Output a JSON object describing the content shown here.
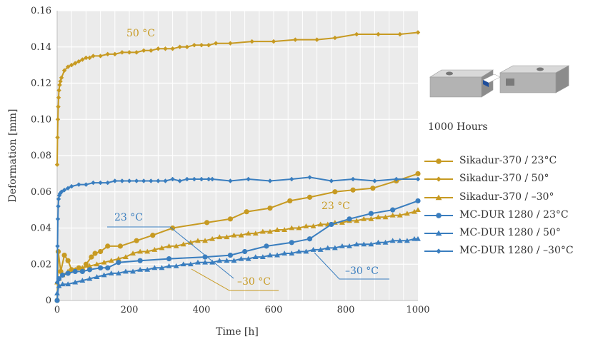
{
  "chart_data": {
    "type": "line",
    "xlabel": "Time [h]",
    "ylabel": "Deformation [mm]",
    "xlim": [
      0,
      1000
    ],
    "ylim": [
      0,
      0.16
    ],
    "xticks": [
      0,
      200,
      400,
      600,
      800,
      1000
    ],
    "yticks": [
      0,
      0.02,
      0.04,
      0.06,
      0.08,
      0.1,
      0.12,
      0.14,
      0.16
    ],
    "xtick_labels": [
      "0",
      "200",
      "400",
      "600",
      "800",
      "1000"
    ],
    "ytick_labels": [
      "0",
      "0.02",
      "0.04",
      "0.06",
      "0.08",
      "0.10",
      "0.12",
      "0.14",
      "0.16"
    ],
    "grid": true,
    "legend_position": "right",
    "series": [
      {
        "name": "Sikadur-370 / 23°C",
        "color": "#c79a22",
        "marker": "circle",
        "x": [
          0,
          3,
          10,
          20,
          30,
          40,
          60,
          70,
          80,
          95,
          105,
          120,
          140,
          175,
          220,
          265,
          320,
          415,
          480,
          525,
          590,
          645,
          700,
          770,
          820,
          875,
          940,
          1000
        ],
        "y": [
          0.0,
          0.027,
          0.016,
          0.025,
          0.022,
          0.017,
          0.018,
          0.017,
          0.02,
          0.024,
          0.026,
          0.027,
          0.03,
          0.03,
          0.033,
          0.036,
          0.04,
          0.043,
          0.045,
          0.049,
          0.051,
          0.055,
          0.057,
          0.06,
          0.061,
          0.062,
          0.066,
          0.07
        ]
      },
      {
        "name": "Sikadur-370 / 50°",
        "color": "#c79a22",
        "marker": "diamond",
        "x": [
          0,
          1,
          2,
          3,
          4,
          5,
          7,
          9,
          12,
          20,
          30,
          40,
          50,
          60,
          70,
          80,
          90,
          100,
          120,
          140,
          160,
          180,
          200,
          220,
          240,
          260,
          280,
          300,
          320,
          340,
          360,
          380,
          400,
          420,
          440,
          480,
          540,
          600,
          660,
          720,
          770,
          830,
          890,
          950,
          1000
        ],
        "y": [
          0.075,
          0.09,
          0.1,
          0.107,
          0.112,
          0.116,
          0.119,
          0.121,
          0.123,
          0.127,
          0.129,
          0.13,
          0.131,
          0.132,
          0.133,
          0.134,
          0.134,
          0.135,
          0.135,
          0.136,
          0.136,
          0.137,
          0.137,
          0.137,
          0.138,
          0.138,
          0.139,
          0.139,
          0.139,
          0.14,
          0.14,
          0.141,
          0.141,
          0.141,
          0.142,
          0.142,
          0.143,
          0.143,
          0.144,
          0.144,
          0.145,
          0.147,
          0.147,
          0.147,
          0.148
        ]
      },
      {
        "name": "Sikadur-370 / –30°",
        "color": "#c79a22",
        "marker": "triangle",
        "x": [
          0,
          5,
          15,
          30,
          50,
          70,
          90,
          110,
          130,
          150,
          170,
          190,
          210,
          230,
          250,
          270,
          290,
          310,
          330,
          350,
          370,
          390,
          410,
          430,
          450,
          470,
          490,
          510,
          530,
          550,
          570,
          590,
          610,
          630,
          650,
          670,
          690,
          710,
          730,
          750,
          770,
          790,
          810,
          830,
          850,
          870,
          890,
          910,
          930,
          950,
          970,
          990,
          1000
        ],
        "y": [
          0.01,
          0.012,
          0.014,
          0.016,
          0.017,
          0.018,
          0.019,
          0.02,
          0.021,
          0.022,
          0.023,
          0.024,
          0.026,
          0.027,
          0.027,
          0.028,
          0.029,
          0.03,
          0.03,
          0.031,
          0.032,
          0.033,
          0.033,
          0.034,
          0.035,
          0.035,
          0.036,
          0.036,
          0.037,
          0.037,
          0.038,
          0.038,
          0.039,
          0.039,
          0.04,
          0.04,
          0.041,
          0.041,
          0.042,
          0.042,
          0.043,
          0.043,
          0.044,
          0.044,
          0.045,
          0.045,
          0.046,
          0.046,
          0.047,
          0.047,
          0.048,
          0.049,
          0.05
        ]
      },
      {
        "name": "MC-DUR 1280 / 23°C",
        "color": "#3a7ebf",
        "marker": "circle",
        "x": [
          0,
          5,
          15,
          30,
          50,
          70,
          90,
          120,
          140,
          170,
          230,
          310,
          410,
          480,
          520,
          580,
          650,
          700,
          760,
          810,
          870,
          930,
          1000
        ],
        "y": [
          0.0,
          0.012,
          0.014,
          0.015,
          0.016,
          0.016,
          0.017,
          0.018,
          0.018,
          0.021,
          0.022,
          0.023,
          0.024,
          0.025,
          0.027,
          0.03,
          0.032,
          0.034,
          0.042,
          0.045,
          0.048,
          0.05,
          0.055
        ]
      },
      {
        "name": "MC-DUR 1280 / 50°",
        "color": "#3a7ebf",
        "marker": "triangle",
        "x": [
          0,
          5,
          15,
          30,
          50,
          70,
          90,
          110,
          130,
          150,
          170,
          190,
          210,
          230,
          250,
          270,
          290,
          310,
          330,
          350,
          370,
          390,
          410,
          430,
          450,
          470,
          490,
          510,
          530,
          550,
          570,
          590,
          610,
          630,
          650,
          670,
          690,
          710,
          730,
          750,
          770,
          790,
          810,
          830,
          850,
          870,
          890,
          910,
          930,
          950,
          970,
          990,
          1000
        ],
        "y": [
          0.004,
          0.008,
          0.009,
          0.009,
          0.01,
          0.011,
          0.012,
          0.013,
          0.014,
          0.015,
          0.015,
          0.016,
          0.016,
          0.017,
          0.017,
          0.018,
          0.018,
          0.019,
          0.019,
          0.02,
          0.02,
          0.021,
          0.021,
          0.021,
          0.022,
          0.022,
          0.022,
          0.023,
          0.023,
          0.024,
          0.024,
          0.025,
          0.025,
          0.026,
          0.026,
          0.027,
          0.027,
          0.028,
          0.028,
          0.029,
          0.029,
          0.03,
          0.03,
          0.031,
          0.031,
          0.031,
          0.032,
          0.032,
          0.033,
          0.033,
          0.033,
          0.034,
          0.034
        ]
      },
      {
        "name": "MC-DUR 1280 / –30°C",
        "color": "#3a7ebf",
        "marker": "diamond",
        "x": [
          0,
          1,
          2,
          3,
          4,
          6,
          8,
          12,
          20,
          30,
          40,
          60,
          80,
          100,
          120,
          140,
          160,
          180,
          200,
          220,
          240,
          260,
          280,
          300,
          320,
          340,
          360,
          380,
          400,
          420,
          430,
          480,
          530,
          590,
          650,
          700,
          760,
          820,
          880,
          940,
          1000
        ],
        "y": [
          0.01,
          0.03,
          0.045,
          0.052,
          0.056,
          0.058,
          0.059,
          0.06,
          0.061,
          0.062,
          0.063,
          0.064,
          0.064,
          0.065,
          0.065,
          0.065,
          0.066,
          0.066,
          0.066,
          0.066,
          0.066,
          0.066,
          0.066,
          0.066,
          0.067,
          0.066,
          0.067,
          0.067,
          0.067,
          0.067,
          0.067,
          0.066,
          0.067,
          0.066,
          0.067,
          0.068,
          0.066,
          0.067,
          0.066,
          0.067,
          0.067
        ]
      }
    ],
    "annotations": [
      {
        "text": "50 °C",
        "color": "#c79a22"
      },
      {
        "text": "23 °C",
        "color": "#3a7ebf"
      },
      {
        "text": "23 °C",
        "color": "#c79a22"
      },
      {
        "text": "–30 °C",
        "color": "#c79a22"
      },
      {
        "text": "–30 °C",
        "color": "#3a7ebf"
      }
    ]
  },
  "note": "1000 Hours",
  "image_icon": "specimen-block-icon"
}
